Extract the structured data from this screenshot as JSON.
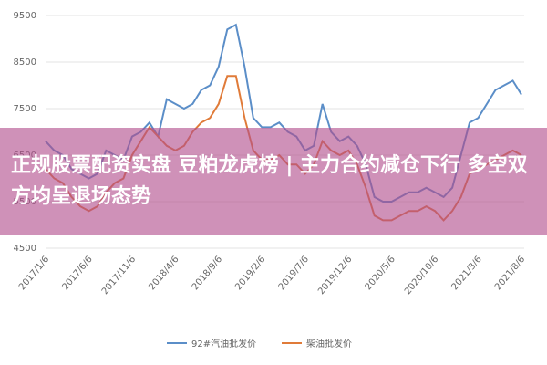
{
  "chart_data": {
    "type": "line",
    "title": "正规股票配资实盘 豆粕龙虎榜 | 主力合约减仓下行 多空双方均呈退场态势",
    "categories": [
      "2017/1/6",
      null,
      null,
      null,
      null,
      "2017/6/6",
      null,
      null,
      null,
      null,
      "2017/11/6",
      null,
      null,
      null,
      null,
      "2018/4/6",
      null,
      null,
      null,
      null,
      "2018/9/6",
      null,
      null,
      null,
      null,
      "2019/2/6",
      null,
      null,
      null,
      null,
      "2019/7/6",
      null,
      null,
      null,
      null,
      "2019/12/6",
      null,
      null,
      null,
      null,
      "2020/5/6",
      null,
      null,
      null,
      null,
      "2020/10/6",
      null,
      null,
      null,
      null,
      "2021/3/6",
      null,
      null,
      null,
      null,
      "2021/8/6"
    ],
    "series": [
      {
        "name": "92#汽油批发价",
        "color": "#5b8ec8",
        "values": [
          6800,
          6600,
          6500,
          6200,
          6100,
          6000,
          6100,
          6600,
          6500,
          6400,
          6900,
          7000,
          7200,
          6900,
          7700,
          7600,
          7500,
          7600,
          7900,
          8000,
          8400,
          9200,
          9300,
          8400,
          7300,
          7100,
          7100,
          7200,
          7000,
          6900,
          6600,
          6700,
          7600,
          7000,
          6800,
          6900,
          6700,
          6300,
          5600,
          5500,
          5500,
          5600,
          5700,
          5700,
          5800,
          5700,
          5600,
          5800,
          6500,
          7200,
          7300,
          7600,
          7900,
          8000,
          8100,
          7800
        ]
      },
      {
        "name": "柴油批发价",
        "color": "#e07b39",
        "values": [
          6200,
          6000,
          5900,
          5600,
          5400,
          5300,
          5400,
          5700,
          5900,
          6000,
          6500,
          6800,
          7100,
          6900,
          6700,
          6600,
          6700,
          7000,
          7200,
          7300,
          7600,
          8200,
          8200,
          7300,
          6600,
          6400,
          6400,
          6500,
          6300,
          6300,
          6100,
          6300,
          6800,
          6600,
          6500,
          6600,
          6300,
          5800,
          5200,
          5100,
          5100,
          5200,
          5300,
          5300,
          5400,
          5300,
          5100,
          5300,
          5600,
          6100,
          6200,
          6300,
          6400,
          6500,
          6600,
          6500
        ]
      }
    ],
    "ylim": [
      4500,
      9500
    ],
    "yticks": [
      4500,
      5500,
      6500,
      7500,
      8500,
      9500
    ],
    "grid": true
  }
}
